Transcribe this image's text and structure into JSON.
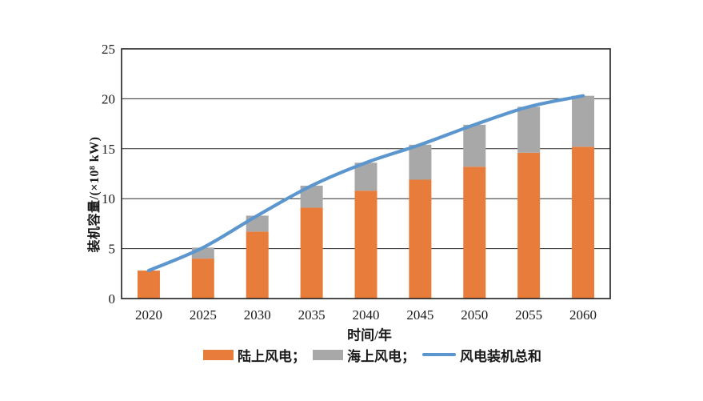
{
  "chart_data": {
    "type": "bar",
    "subtype": "stacked-bars-with-total-line",
    "title": "",
    "categories": [
      "2020",
      "2025",
      "2030",
      "2035",
      "2040",
      "2045",
      "2050",
      "2055",
      "2060"
    ],
    "series": [
      {
        "name": "陆上风电",
        "type": "bar",
        "stack": "wind",
        "color": "#E77C3B",
        "values": [
          2.8,
          4.0,
          6.7,
          9.1,
          10.8,
          11.9,
          13.2,
          14.6,
          15.2
        ]
      },
      {
        "name": "海上风电",
        "type": "bar",
        "stack": "wind",
        "color": "#A8A8A8",
        "values": [
          0,
          1.1,
          1.6,
          2.2,
          2.8,
          3.5,
          4.2,
          4.6,
          5.1
        ]
      },
      {
        "name": "风电装机总和",
        "type": "line",
        "color": "#5B96CE",
        "values": [
          2.8,
          5.1,
          8.3,
          11.3,
          13.6,
          15.4,
          17.4,
          19.2,
          20.3
        ]
      }
    ],
    "xlabel": "时间/年",
    "ylabel": "装机容量/(×10⁸ kW)",
    "ylim": [
      0,
      25
    ],
    "yticks": [
      0,
      5,
      10,
      15,
      20,
      25
    ],
    "grid": true,
    "grid_color": "#2b2b2b",
    "axis_color": "#1f1f1f",
    "legend_position": "bottom"
  },
  "legend": {
    "items": [
      {
        "label": "陆上风电；",
        "series_index": 0,
        "swatch": "rect"
      },
      {
        "label": "海上风电；",
        "series_index": 1,
        "swatch": "rect"
      },
      {
        "label": "风电装机总和",
        "series_index": 2,
        "swatch": "line"
      }
    ]
  }
}
